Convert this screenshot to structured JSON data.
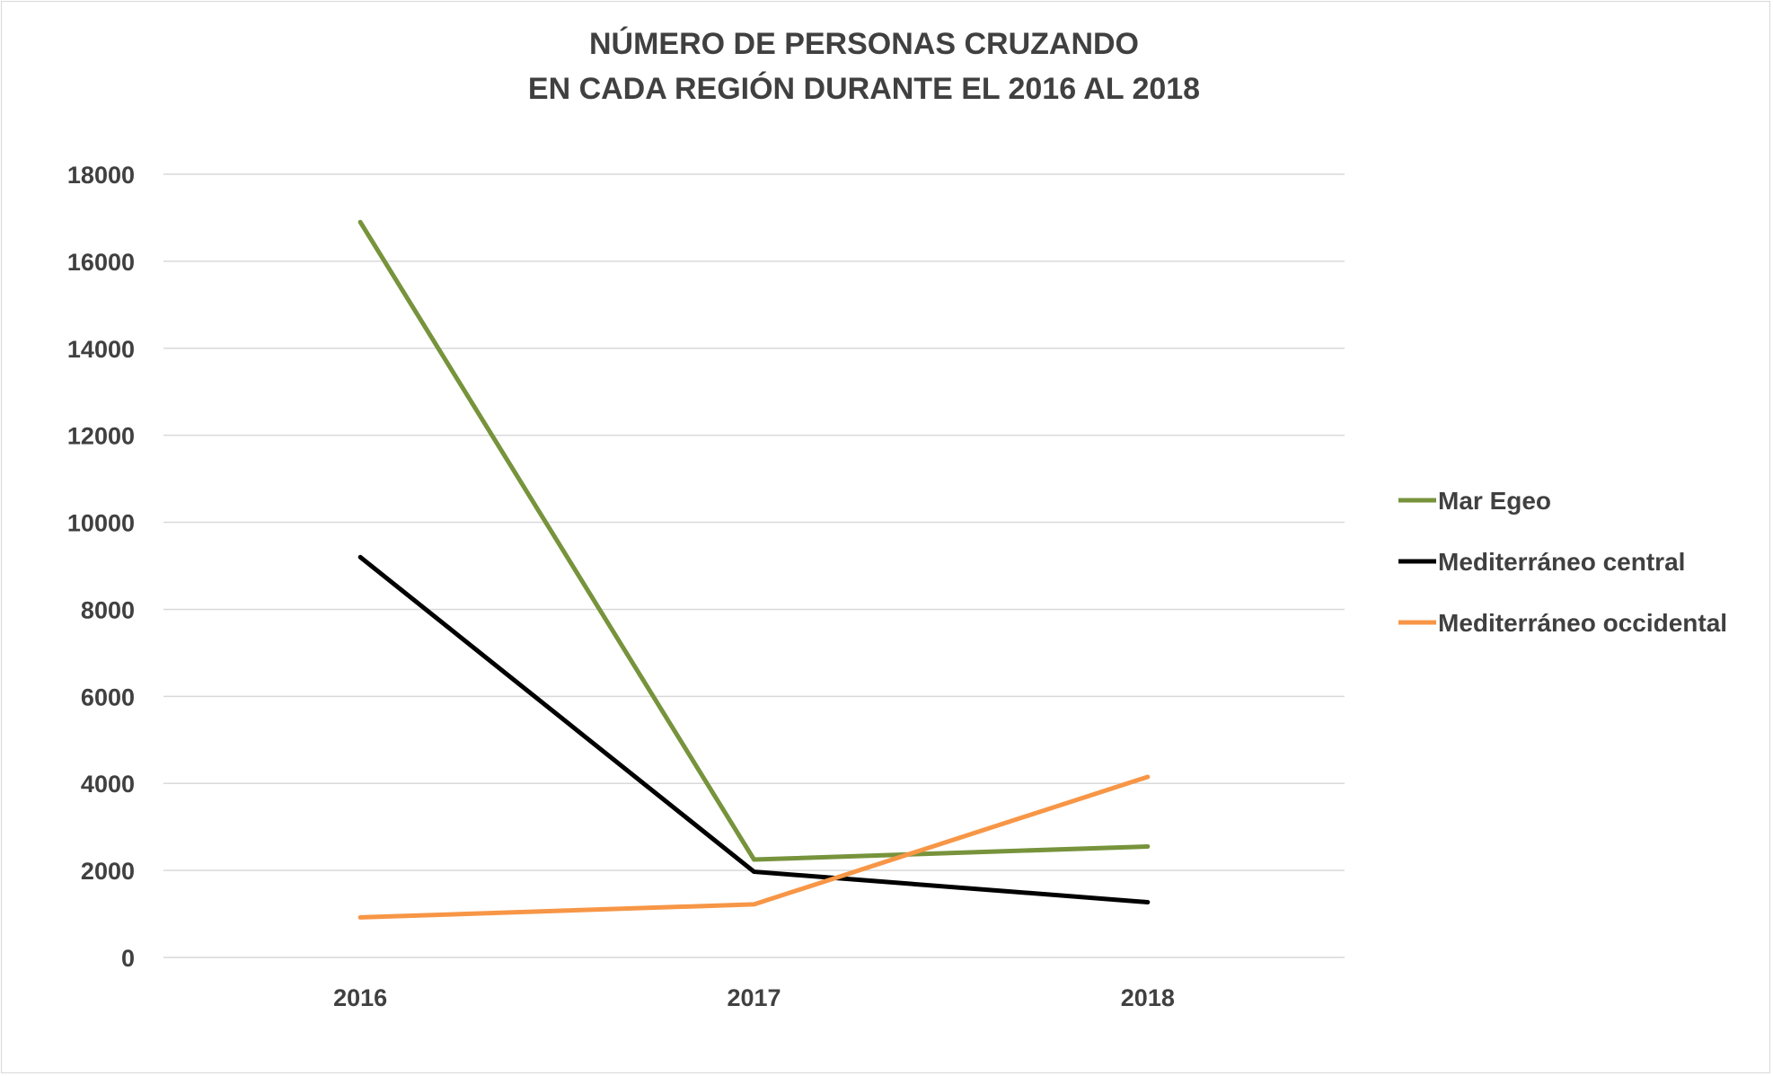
{
  "chart_data": {
    "type": "line",
    "title_lines": [
      "NÚMERO DE PERSONAS CRUZANDO",
      "EN CADA REGIÓN DURANTE EL 2016 AL 2018"
    ],
    "categories": [
      "2016",
      "2017",
      "2018"
    ],
    "ylim": [
      0,
      18000
    ],
    "yticks": [
      "0",
      "2000",
      "4000",
      "6000",
      "8000",
      "10000",
      "12000",
      "14000",
      "16000",
      "18000"
    ],
    "grid": true,
    "legend_position": "right",
    "series": [
      {
        "name": "Mar Egeo",
        "color": "#77933c",
        "values": [
          16900,
          2250,
          2550
        ]
      },
      {
        "name": "Mediterráneo central",
        "color": "#000000",
        "values": [
          9200,
          1970,
          1270
        ]
      },
      {
        "name": "Mediterráneo occidental",
        "color": "#f79646",
        "values": [
          920,
          1220,
          4150
        ]
      }
    ]
  }
}
